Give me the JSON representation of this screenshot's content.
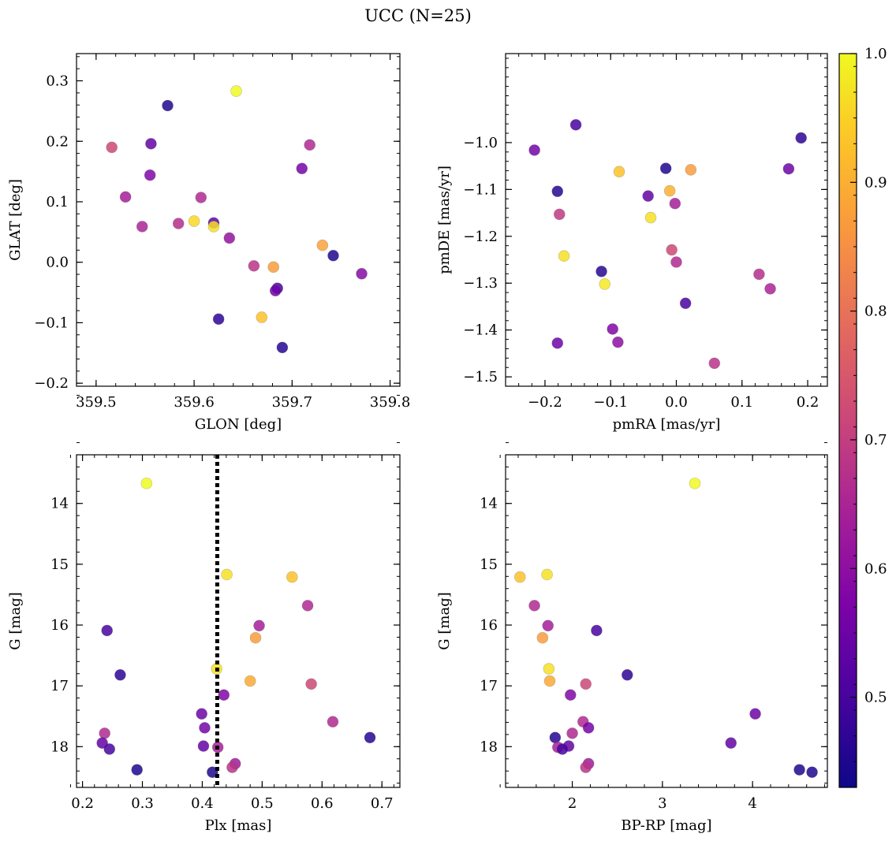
{
  "figure": {
    "title": "UCC (N=25)"
  },
  "colorbar": {
    "min": 0.43,
    "max": 1.0,
    "ticks": [
      0.5,
      0.6,
      0.7,
      0.8,
      0.9,
      1.0
    ],
    "colormap": "plasma"
  },
  "chart_data": [
    {
      "type": "scatter",
      "xlabel": "GLON [deg]",
      "ylabel": "GLAT [deg]",
      "xlim": [
        359.48,
        359.81
      ],
      "ylim": [
        -0.205,
        0.345
      ],
      "xticks": [
        359.5,
        359.6,
        359.7,
        359.8
      ],
      "xtick_labels": [
        "359.5",
        "359.6",
        "359.7",
        "359.8"
      ],
      "yticks": [
        -0.2,
        -0.1,
        0.0,
        0.1,
        0.2,
        0.3
      ],
      "ytick_labels": [
        "−0.2",
        "−0.1",
        "0.0",
        "0.1",
        "0.2",
        "0.3"
      ],
      "points": [
        {
          "x": 359.643,
          "y": 0.283,
          "c": 1.0
        },
        {
          "x": 359.573,
          "y": 0.259,
          "c": 0.45
        },
        {
          "x": 359.516,
          "y": 0.19,
          "c": 0.72
        },
        {
          "x": 359.556,
          "y": 0.196,
          "c": 0.54
        },
        {
          "x": 359.718,
          "y": 0.194,
          "c": 0.66
        },
        {
          "x": 359.71,
          "y": 0.155,
          "c": 0.56
        },
        {
          "x": 359.555,
          "y": 0.144,
          "c": 0.58
        },
        {
          "x": 359.53,
          "y": 0.108,
          "c": 0.64
        },
        {
          "x": 359.607,
          "y": 0.107,
          "c": 0.66
        },
        {
          "x": 359.584,
          "y": 0.064,
          "c": 0.67
        },
        {
          "x": 359.547,
          "y": 0.059,
          "c": 0.65
        },
        {
          "x": 359.6,
          "y": 0.068,
          "c": 0.96
        },
        {
          "x": 359.62,
          "y": 0.065,
          "c": 0.53
        },
        {
          "x": 359.62,
          "y": 0.059,
          "c": 0.97
        },
        {
          "x": 359.636,
          "y": 0.04,
          "c": 0.61
        },
        {
          "x": 359.731,
          "y": 0.028,
          "c": 0.88
        },
        {
          "x": 359.742,
          "y": 0.011,
          "c": 0.45
        },
        {
          "x": 359.661,
          "y": -0.006,
          "c": 0.68
        },
        {
          "x": 359.681,
          "y": -0.008,
          "c": 0.87
        },
        {
          "x": 359.771,
          "y": -0.019,
          "c": 0.59
        },
        {
          "x": 359.685,
          "y": -0.043,
          "c": 0.5
        },
        {
          "x": 359.683,
          "y": -0.047,
          "c": 0.55
        },
        {
          "x": 359.625,
          "y": -0.094,
          "c": 0.47
        },
        {
          "x": 359.669,
          "y": -0.091,
          "c": 0.93
        },
        {
          "x": 359.69,
          "y": -0.141,
          "c": 0.46
        }
      ]
    },
    {
      "type": "scatter",
      "xlabel": "pmRA [mas/yr]",
      "ylabel": "pmDE [mas/yr]",
      "xlim": [
        -0.26,
        0.23
      ],
      "ylim": [
        -1.52,
        -0.81
      ],
      "xticks": [
        -0.2,
        -0.1,
        0.0,
        0.1,
        0.2
      ],
      "xtick_labels": [
        "−0.2",
        "−0.1",
        "0.0",
        "0.1",
        "0.2"
      ],
      "yticks": [
        -1.5,
        -1.4,
        -1.3,
        -1.2,
        -1.1,
        -1.0
      ],
      "ytick_labels": [
        "−1.5",
        "−1.4",
        "−1.3",
        "−1.2",
        "−1.1",
        "−1.0"
      ],
      "points": [
        {
          "x": -0.153,
          "y": -0.962,
          "c": 0.5
        },
        {
          "x": -0.216,
          "y": -1.016,
          "c": 0.56
        },
        {
          "x": 0.19,
          "y": -0.99,
          "c": 0.47
        },
        {
          "x": 0.171,
          "y": -1.056,
          "c": 0.55
        },
        {
          "x": -0.016,
          "y": -1.055,
          "c": 0.45
        },
        {
          "x": 0.022,
          "y": -1.058,
          "c": 0.87
        },
        {
          "x": -0.087,
          "y": -1.062,
          "c": 0.93
        },
        {
          "x": -0.181,
          "y": -1.104,
          "c": 0.46
        },
        {
          "x": -0.01,
          "y": -1.103,
          "c": 0.9
        },
        {
          "x": -0.043,
          "y": -1.114,
          "c": 0.54
        },
        {
          "x": -0.002,
          "y": -1.13,
          "c": 0.64
        },
        {
          "x": -0.178,
          "y": -1.153,
          "c": 0.69
        },
        {
          "x": -0.039,
          "y": -1.16,
          "c": 0.97
        },
        {
          "x": -0.171,
          "y": -1.242,
          "c": 0.97
        },
        {
          "x": -0.007,
          "y": -1.229,
          "c": 0.72
        },
        {
          "x": 0.0,
          "y": -1.255,
          "c": 0.66
        },
        {
          "x": -0.114,
          "y": -1.275,
          "c": 0.46
        },
        {
          "x": 0.126,
          "y": -1.281,
          "c": 0.67
        },
        {
          "x": -0.109,
          "y": -1.302,
          "c": 0.98
        },
        {
          "x": 0.143,
          "y": -1.312,
          "c": 0.65
        },
        {
          "x": 0.014,
          "y": -1.343,
          "c": 0.5
        },
        {
          "x": -0.097,
          "y": -1.398,
          "c": 0.58
        },
        {
          "x": -0.181,
          "y": -1.428,
          "c": 0.55
        },
        {
          "x": -0.089,
          "y": -1.426,
          "c": 0.6
        },
        {
          "x": 0.058,
          "y": -1.471,
          "c": 0.68
        }
      ]
    },
    {
      "type": "scatter",
      "xlabel": "Plx [mas]",
      "ylabel": "G [mag]",
      "xlim": [
        0.19,
        0.73
      ],
      "ylim": [
        18.67,
        13.2
      ],
      "y_inverted": true,
      "xticks": [
        0.2,
        0.3,
        0.4,
        0.5,
        0.6,
        0.7
      ],
      "xtick_labels": [
        "0.2",
        "0.3",
        "0.4",
        "0.5",
        "0.6",
        "0.7"
      ],
      "yticks": [
        14,
        15,
        16,
        17,
        18
      ],
      "ytick_labels": [
        "14",
        "15",
        "16",
        "17",
        "18"
      ],
      "vline": {
        "x": 0.425,
        "style": "dotted",
        "color": "#000000"
      },
      "points": [
        {
          "x": 0.307,
          "y": 13.67,
          "c": 1.0
        },
        {
          "x": 0.441,
          "y": 15.17,
          "c": 0.97
        },
        {
          "x": 0.55,
          "y": 15.21,
          "c": 0.93
        },
        {
          "x": 0.576,
          "y": 15.68,
          "c": 0.66
        },
        {
          "x": 0.495,
          "y": 16.01,
          "c": 0.64
        },
        {
          "x": 0.489,
          "y": 16.21,
          "c": 0.87
        },
        {
          "x": 0.241,
          "y": 16.09,
          "c": 0.5
        },
        {
          "x": 0.263,
          "y": 16.82,
          "c": 0.47
        },
        {
          "x": 0.424,
          "y": 16.72,
          "c": 0.97
        },
        {
          "x": 0.48,
          "y": 16.92,
          "c": 0.89
        },
        {
          "x": 0.582,
          "y": 16.97,
          "c": 0.72
        },
        {
          "x": 0.436,
          "y": 17.15,
          "c": 0.58
        },
        {
          "x": 0.399,
          "y": 17.46,
          "c": 0.55
        },
        {
          "x": 0.618,
          "y": 17.59,
          "c": 0.66
        },
        {
          "x": 0.404,
          "y": 17.69,
          "c": 0.56
        },
        {
          "x": 0.237,
          "y": 17.78,
          "c": 0.66
        },
        {
          "x": 0.68,
          "y": 17.85,
          "c": 0.46
        },
        {
          "x": 0.233,
          "y": 17.94,
          "c": 0.54
        },
        {
          "x": 0.402,
          "y": 17.99,
          "c": 0.54
        },
        {
          "x": 0.426,
          "y": 18.01,
          "c": 0.64
        },
        {
          "x": 0.245,
          "y": 18.04,
          "c": 0.5
        },
        {
          "x": 0.455,
          "y": 18.28,
          "c": 0.63
        },
        {
          "x": 0.45,
          "y": 18.34,
          "c": 0.68
        },
        {
          "x": 0.291,
          "y": 18.38,
          "c": 0.45
        },
        {
          "x": 0.417,
          "y": 18.42,
          "c": 0.45
        }
      ]
    },
    {
      "type": "scatter",
      "xlabel": "BP-RP [mag]",
      "ylabel": "G [mag]",
      "xlim": [
        1.26,
        4.83
      ],
      "ylim": [
        18.67,
        13.2
      ],
      "y_inverted": true,
      "xticks": [
        2,
        3,
        4
      ],
      "xtick_labels": [
        "2",
        "3",
        "4"
      ],
      "yticks": [
        14,
        15,
        16,
        17,
        18
      ],
      "ytick_labels": [
        "14",
        "15",
        "16",
        "17",
        "18"
      ],
      "points": [
        {
          "x": 3.36,
          "y": 13.67,
          "c": 1.0
        },
        {
          "x": 1.42,
          "y": 15.21,
          "c": 0.93
        },
        {
          "x": 1.72,
          "y": 15.17,
          "c": 0.97
        },
        {
          "x": 1.58,
          "y": 15.68,
          "c": 0.66
        },
        {
          "x": 1.73,
          "y": 16.01,
          "c": 0.64
        },
        {
          "x": 1.67,
          "y": 16.21,
          "c": 0.87
        },
        {
          "x": 2.27,
          "y": 16.09,
          "c": 0.5
        },
        {
          "x": 2.61,
          "y": 16.82,
          "c": 0.47
        },
        {
          "x": 1.74,
          "y": 16.72,
          "c": 0.97
        },
        {
          "x": 1.75,
          "y": 16.92,
          "c": 0.89
        },
        {
          "x": 2.15,
          "y": 16.97,
          "c": 0.72
        },
        {
          "x": 1.98,
          "y": 17.15,
          "c": 0.58
        },
        {
          "x": 4.03,
          "y": 17.46,
          "c": 0.55
        },
        {
          "x": 2.12,
          "y": 17.59,
          "c": 0.66
        },
        {
          "x": 2.18,
          "y": 17.69,
          "c": 0.56
        },
        {
          "x": 2.0,
          "y": 17.78,
          "c": 0.66
        },
        {
          "x": 1.81,
          "y": 17.85,
          "c": 0.46
        },
        {
          "x": 3.76,
          "y": 17.94,
          "c": 0.54
        },
        {
          "x": 1.96,
          "y": 17.99,
          "c": 0.54
        },
        {
          "x": 1.84,
          "y": 18.01,
          "c": 0.64
        },
        {
          "x": 1.89,
          "y": 18.04,
          "c": 0.5
        },
        {
          "x": 2.18,
          "y": 18.28,
          "c": 0.63
        },
        {
          "x": 2.15,
          "y": 18.34,
          "c": 0.68
        },
        {
          "x": 4.52,
          "y": 18.38,
          "c": 0.45
        },
        {
          "x": 4.66,
          "y": 18.42,
          "c": 0.45
        }
      ]
    }
  ]
}
